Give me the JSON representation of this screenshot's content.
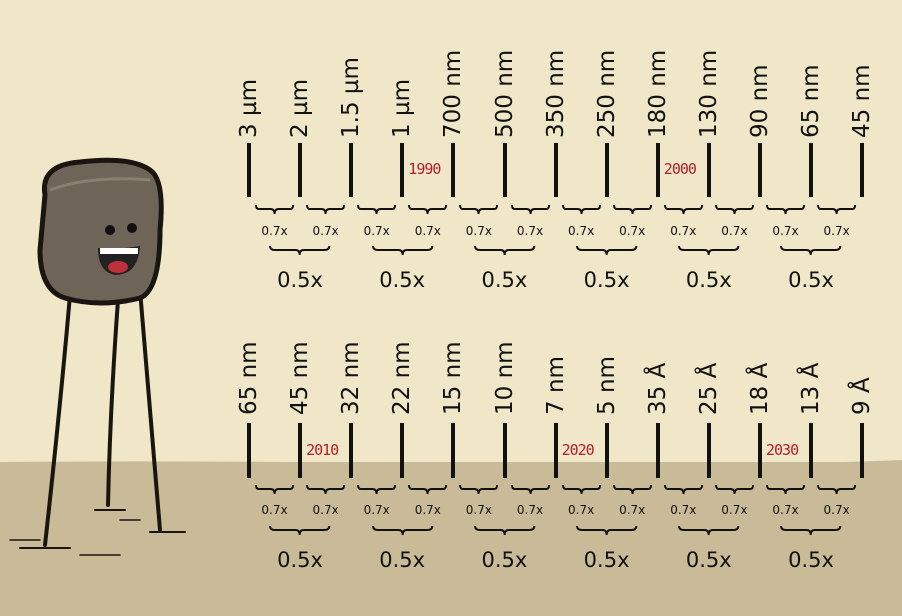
{
  "rows": [
    {
      "labels": [
        "3 µm",
        "2 µm",
        "1.5 µm",
        "1 µm",
        "700 nm",
        "500 nm",
        "350 nm",
        "250 nm",
        "180 nm",
        "130 nm",
        "90 nm",
        "65 nm",
        "45 nm"
      ],
      "years": [
        {
          "text": "1990",
          "after_index": 3
        },
        {
          "text": "2000",
          "after_index": 8
        }
      ],
      "small_factor": "0.7x",
      "big_factor": "0.5x"
    },
    {
      "labels": [
        "65 nm",
        "45 nm",
        "32 nm",
        "22 nm",
        "15 nm",
        "10 nm",
        "7 nm",
        "5 nm",
        "35 Å",
        "25 Å",
        "18 Å",
        "13 Å",
        "9 Å"
      ],
      "years": [
        {
          "text": "2010",
          "after_index": 1
        },
        {
          "text": "2020",
          "after_index": 6
        },
        {
          "text": "2030",
          "after_index": 10
        }
      ],
      "small_factor": "0.7x",
      "big_factor": "0.5x"
    }
  ],
  "colors": {
    "background": "#f0e6c8",
    "ground": "#c9bb98",
    "year_text": "#b0202a",
    "character": "#6e6558"
  }
}
